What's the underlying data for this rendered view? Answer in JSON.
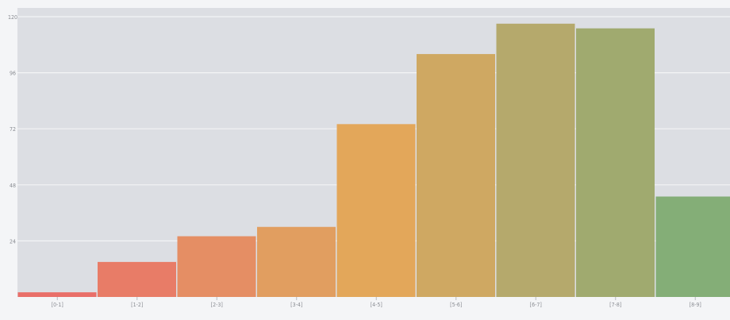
{
  "chart_data": {
    "type": "bar",
    "categories": [
      "[0-1]",
      "[1-2]",
      "[2-3]",
      "[3-4]",
      "[4-5]",
      "[5-6]",
      "[6-7]",
      "[7-8]",
      "[8-9]"
    ],
    "values": [
      2,
      15,
      26,
      30,
      74,
      104,
      117,
      115,
      43
    ],
    "ylim": [
      0,
      120
    ],
    "yticks": [
      24,
      48,
      72,
      96,
      120
    ],
    "grid": true,
    "legend": "none",
    "colors": {
      "background": "#f4f5f7",
      "plot_area": "#dcdee3",
      "gridline": "#f3f4f6",
      "bars": [
        "#e96f69",
        "#e87c67",
        "#e58e64",
        "#e19e60",
        "#e3a75a",
        "#cfa862",
        "#b5a96c",
        "#a0aa6f",
        "#84ae77"
      ]
    }
  }
}
